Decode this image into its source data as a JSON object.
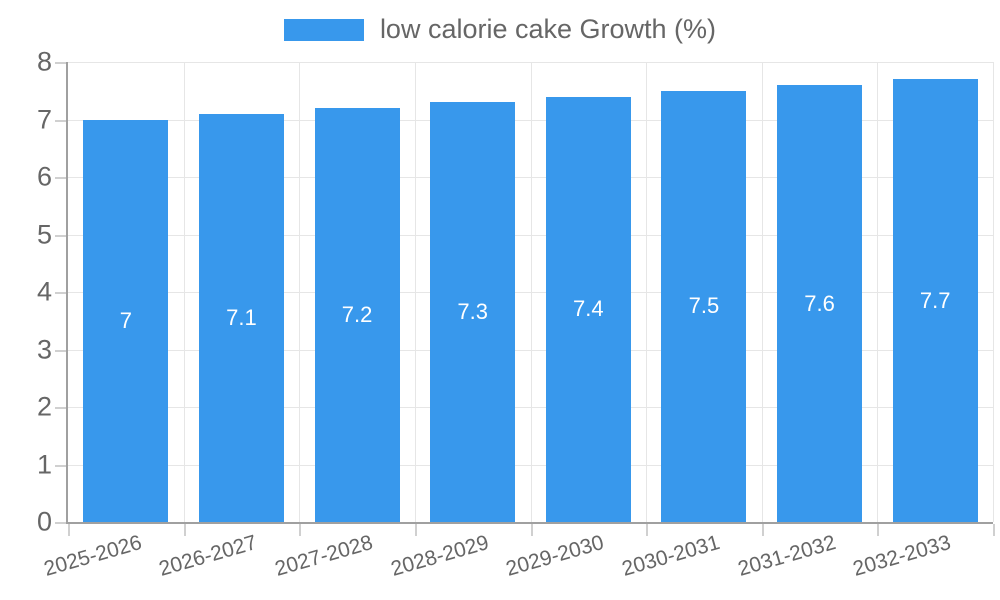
{
  "legend": {
    "label": "low calorie cake Growth (%)",
    "swatch_color": "#3898EC"
  },
  "chart_data": {
    "type": "bar",
    "title": "low calorie cake Growth (%)",
    "categories": [
      "2025-2026",
      "2026-2027",
      "2027-2028",
      "2028-2029",
      "2029-2030",
      "2030-2031",
      "2031-2032",
      "2032-2033"
    ],
    "values": [
      7,
      7.1,
      7.2,
      7.3,
      7.4,
      7.5,
      7.6,
      7.7
    ],
    "data_labels": [
      "7",
      "7.1",
      "7.2",
      "7.3",
      "7.4",
      "7.5",
      "7.6",
      "7.7"
    ],
    "series": [
      {
        "name": "low calorie cake Growth (%)",
        "values": [
          7,
          7.1,
          7.2,
          7.3,
          7.4,
          7.5,
          7.6,
          7.7
        ]
      }
    ],
    "xlabel": "",
    "ylabel": "",
    "ylim": [
      0,
      8
    ],
    "yticks": [
      0,
      1,
      2,
      3,
      4,
      5,
      6,
      7,
      8
    ],
    "ytick_labels": [
      "0",
      "1",
      "2",
      "3",
      "4",
      "5",
      "6",
      "7",
      "8"
    ],
    "grid": true,
    "legend_position": "top",
    "bar_color": "#3898EC",
    "data_label_color": "#FFFFFF",
    "axis_color": "#A0A0A0",
    "grid_color": "#E6E6E6",
    "tick_color": "#D0D0D0",
    "text_color": "#666666",
    "x_label_rotation_deg": -16
  }
}
